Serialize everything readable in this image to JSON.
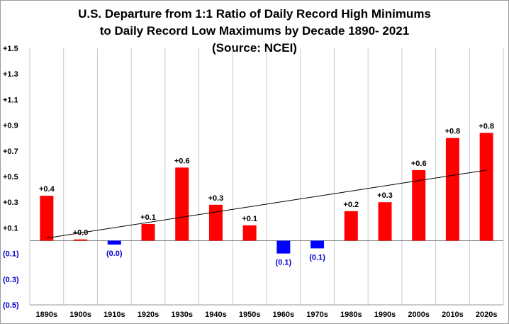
{
  "chart_data": {
    "type": "bar",
    "title_lines": [
      "U.S. Departure from 1:1 Ratio of Daily Record High Minimums",
      "to Daily Record Low Maximums by Decade 1890- 2021",
      "(Source: NCEI)"
    ],
    "categories": [
      "1890s",
      "1900s",
      "1910s",
      "1920s",
      "1930s",
      "1940s",
      "1950s",
      "1960s",
      "1970s",
      "1980s",
      "1990s",
      "2000s",
      "2010s",
      "2020s"
    ],
    "values": [
      0.35,
      0.01,
      -0.03,
      0.13,
      0.57,
      0.28,
      0.12,
      -0.1,
      -0.06,
      0.23,
      0.3,
      0.55,
      0.8,
      0.84
    ],
    "data_labels": [
      "+0.4",
      "+0.0",
      "(0.0)",
      "+0.1",
      "+0.6",
      "+0.3",
      "+0.1",
      "(0.1)",
      "(0.1)",
      "+0.2",
      "+0.3",
      "+0.6",
      "+0.8",
      "+0.8"
    ],
    "ylim": [
      -0.5,
      1.5
    ],
    "yticks": [
      1.5,
      1.3,
      1.1,
      0.9,
      0.7,
      0.5,
      0.3,
      0.1,
      -0.1,
      -0.3,
      -0.5
    ],
    "ytick_labels": [
      "+1.5",
      "+1.3",
      "+1.1",
      "+0.9",
      "+0.7",
      "+0.5",
      "+0.3",
      "+0.1",
      "(0.1)",
      "(0.3)",
      "(0.5)"
    ],
    "trendline": {
      "start_value": 0.02,
      "end_value": 0.55
    },
    "grid": "vertical",
    "colors": {
      "positive": "#ff0000",
      "negative": "#0000ff",
      "trend": "#000000",
      "grid": "#c8c8c8",
      "negative_label": "#0000cc"
    }
  }
}
